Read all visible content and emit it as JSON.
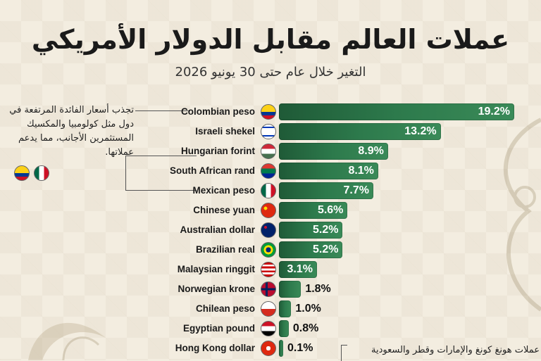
{
  "title": "عملات العالم مقابل الدولار الأمريكي",
  "subtitle": "التغير خلال عام حتى 30 يونيو 2026",
  "note_top": "تجذب أسعار الفائدة المرتفعة في دول مثل كولومبيا والمكسيك المستثمرين الأجانب، مما يدعم عملاتها.",
  "note_bottom": "عملات هونغ كونغ والإمارات وقطر والسعودية",
  "chart_data": {
    "type": "bar",
    "orientation": "horizontal",
    "title": "عملات العالم مقابل الدولار الأمريكي",
    "subtitle": "التغير خلال عام حتى 30 يونيو 2026",
    "unit": "%",
    "xlim": [
      0,
      19.2
    ],
    "categories": [
      "Colombian peso",
      "Israeli shekel",
      "Hungarian forint",
      "South African rand",
      "Mexican peso",
      "Chinese yuan",
      "Australian dollar",
      "Brazilian real",
      "Malaysian ringgit",
      "Norwegian krone",
      "Chilean peso",
      "Egyptian pound",
      "Hong Kong dollar"
    ],
    "values": [
      19.2,
      13.2,
      8.9,
      8.1,
      7.7,
      5.6,
      5.2,
      5.2,
      3.1,
      1.8,
      1.0,
      0.8,
      0.1
    ],
    "value_labels": [
      "19.2%",
      "13.2%",
      "8.9%",
      "8.1%",
      "7.7%",
      "5.6%",
      "5.2%",
      "5.2%",
      "3.1%",
      "1.8%",
      "1.0%",
      "0.8%",
      "0.1%"
    ],
    "flags": [
      "colombia-flag-icon",
      "israel-flag-icon",
      "hungary-flag-icon",
      "south-africa-flag-icon",
      "mexico-flag-icon",
      "china-flag-icon",
      "australia-flag-icon",
      "brazil-flag-icon",
      "malaysia-flag-icon",
      "norway-flag-icon",
      "chile-flag-icon",
      "egypt-flag-icon",
      "hong-kong-flag-icon"
    ],
    "bar_color": "#2d7a4c"
  }
}
